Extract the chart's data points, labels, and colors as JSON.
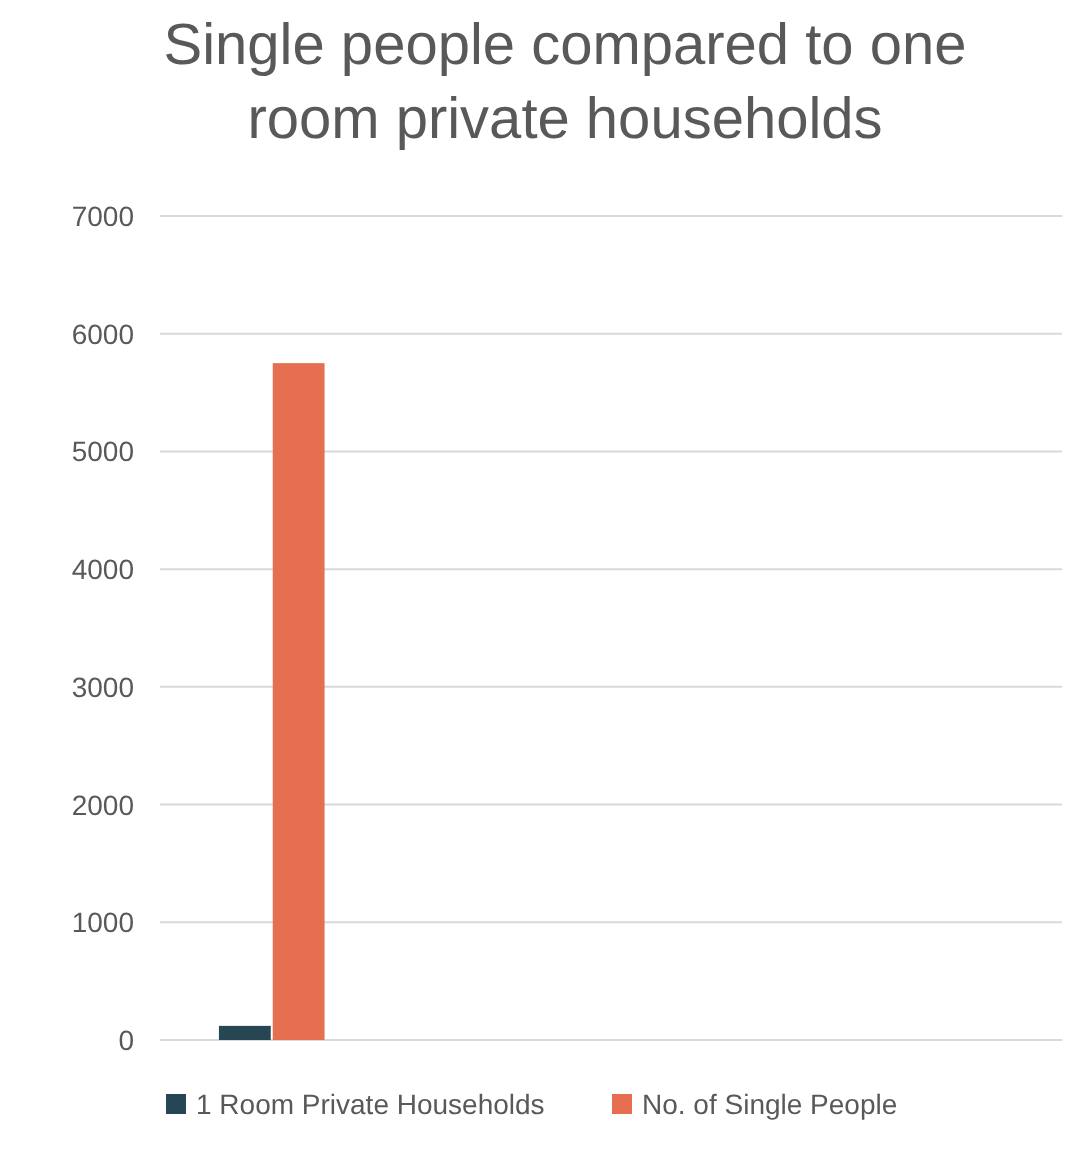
{
  "chart_data": {
    "type": "bar",
    "title": "Single people compared to one room private households",
    "categories": [
      null,
      null,
      null,
      null
    ],
    "series": [
      {
        "name": "1 Room Private Households",
        "color": "#264653",
        "values": [
          120,
          null,
          null,
          null
        ]
      },
      {
        "name": "No. of Single People",
        "color": "#e76f51",
        "values": [
          5750,
          null,
          null,
          null
        ]
      }
    ],
    "ylim": [
      0,
      7000
    ],
    "yticks": [
      0,
      1000,
      2000,
      3000,
      4000,
      5000,
      6000,
      7000
    ],
    "grid": "y",
    "legend": "bottom"
  }
}
